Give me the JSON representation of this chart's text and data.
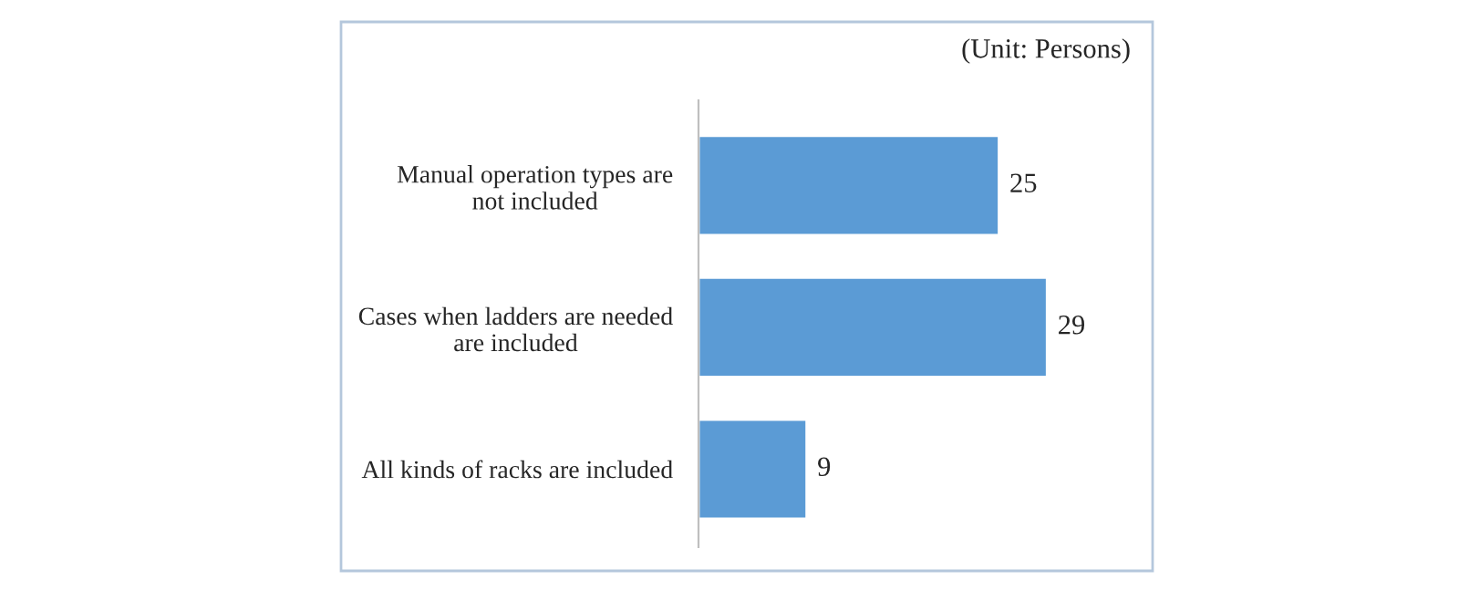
{
  "chart_data": {
    "type": "bar",
    "orientation": "horizontal",
    "categories": [
      "Manual operation types are\nnot included",
      "Cases when ladders are needed\nare included",
      "All kinds of racks are included"
    ],
    "values": [
      25,
      29,
      9
    ],
    "color": "#5b9bd5",
    "data_labels": true,
    "grid": false,
    "legend": false,
    "tick_labels": "y",
    "annotations": [
      "(Unit: Persons)"
    ]
  }
}
